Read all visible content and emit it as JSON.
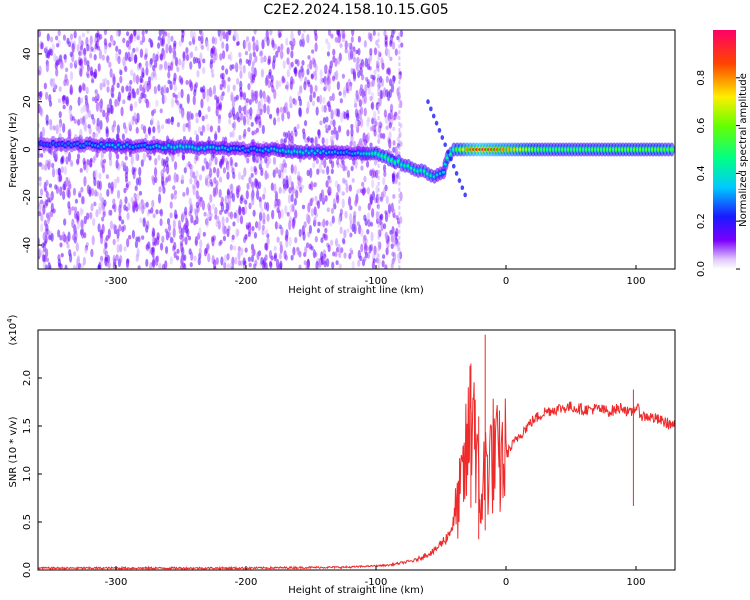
{
  "title": "C2E2.2024.158.10.15.G05",
  "colors": {
    "spectrum_low": "#7a00ff",
    "spectrum_mid": "#00ff66",
    "spectrum_high": "#ff0040",
    "snr_line": "#ee2a2a",
    "axis": "#000000"
  },
  "colorbar": {
    "label": "Normalized spectral amplitude",
    "ticks": [
      "0.0",
      "0.2",
      "0.4",
      "0.6",
      "0.8"
    ],
    "tick_values": [
      0.0,
      0.2,
      0.4,
      0.6,
      0.8
    ],
    "range": [
      0,
      1
    ]
  },
  "chart_data": [
    {
      "type": "heatmap",
      "title": "C2E2.2024.158.10.15.G05",
      "xlabel": "Height of straight line (km)",
      "ylabel": "Frequency (Hz)",
      "xlim": [
        -360,
        130
      ],
      "ylim": [
        -50,
        50
      ],
      "xticks": [
        -300,
        -200,
        -100,
        0,
        100
      ],
      "xtick_labels": [
        "-300",
        "-200",
        "-100",
        "0",
        "100"
      ],
      "yticks": [
        -40,
        -20,
        0,
        20,
        40
      ],
      "ytick_labels": [
        "-40",
        "-20",
        "0",
        "20",
        "40"
      ],
      "ridge": [
        {
          "x": -360,
          "y": 2.5,
          "amp": 0.25
        },
        {
          "x": -320,
          "y": 2,
          "amp": 0.3
        },
        {
          "x": -300,
          "y": 1.5,
          "amp": 0.35
        },
        {
          "x": -280,
          "y": 1.5,
          "amp": 0.3
        },
        {
          "x": -250,
          "y": 1,
          "amp": 0.4
        },
        {
          "x": -220,
          "y": 0.5,
          "amp": 0.35
        },
        {
          "x": -200,
          "y": 0,
          "amp": 0.3
        },
        {
          "x": -180,
          "y": 0,
          "amp": 0.35
        },
        {
          "x": -160,
          "y": -1,
          "amp": 0.4
        },
        {
          "x": -140,
          "y": -1,
          "amp": 0.35
        },
        {
          "x": -120,
          "y": -1.5,
          "amp": 0.3
        },
        {
          "x": -100,
          "y": -2,
          "amp": 0.45
        },
        {
          "x": -90,
          "y": -4,
          "amp": 0.5
        },
        {
          "x": -80,
          "y": -6,
          "amp": 0.45
        },
        {
          "x": -70,
          "y": -8,
          "amp": 0.45
        },
        {
          "x": -60,
          "y": -10,
          "amp": 0.45
        },
        {
          "x": -55,
          "y": -11,
          "amp": 0.4
        },
        {
          "x": -48,
          "y": -9,
          "amp": 0.35
        },
        {
          "x": -45,
          "y": -4,
          "amp": 0.45
        },
        {
          "x": -40,
          "y": 0,
          "amp": 0.5
        },
        {
          "x": -30,
          "y": 0,
          "amp": 0.8
        },
        {
          "x": -20,
          "y": 0,
          "amp": 0.95
        },
        {
          "x": 0,
          "y": 0,
          "amp": 0.8
        },
        {
          "x": 30,
          "y": 0,
          "amp": 0.55
        },
        {
          "x": 60,
          "y": 0,
          "amp": 0.55
        },
        {
          "x": 90,
          "y": 0,
          "amp": 0.6
        },
        {
          "x": 120,
          "y": 0,
          "amp": 0.6
        },
        {
          "x": 130,
          "y": 0,
          "amp": 0.55
        }
      ]
    },
    {
      "type": "line",
      "xlabel": "Height of straight line (km)",
      "ylabel": "SNR (10 * v/v)",
      "y_multiplier_label": "(x10",
      "y_multiplier_exp": "4",
      "y_multiplier_close": ")",
      "xlim": [
        -360,
        130
      ],
      "ylim": [
        0,
        2.5
      ],
      "xticks": [
        -300,
        -200,
        -100,
        0,
        100
      ],
      "xtick_labels": [
        "-300",
        "-200",
        "-100",
        "0",
        "100"
      ],
      "yticks": [
        0.0,
        0.5,
        1.0,
        1.5,
        2.0
      ],
      "ytick_labels": [
        "0.0",
        "0.5",
        "1.0",
        "1.5",
        "2.0"
      ],
      "series": [
        {
          "x": [
            -360,
            -300,
            -200,
            -120,
            -90,
            -70,
            -55,
            -45,
            -40,
            -35,
            -30,
            -25,
            -22,
            -20,
            -18,
            -15,
            -10,
            -5,
            0,
            5,
            10,
            20,
            30,
            40,
            50,
            60,
            70,
            80,
            90,
            95,
            100,
            105,
            110,
            120,
            130
          ],
          "y": [
            0.02,
            0.02,
            0.02,
            0.03,
            0.05,
            0.1,
            0.2,
            0.35,
            0.5,
            0.8,
            1.2,
            1.9,
            1.0,
            0.6,
            0.9,
            1.1,
            1.2,
            1.1,
            1.2,
            1.3,
            1.4,
            1.55,
            1.65,
            1.68,
            1.7,
            1.67,
            1.68,
            1.65,
            1.7,
            1.62,
            1.7,
            1.6,
            1.6,
            1.55,
            1.5
          ]
        }
      ],
      "spikes": [
        {
          "x": -27,
          "y": 2.15
        },
        {
          "x": -21,
          "y": 1.6
        },
        {
          "x": -16,
          "y": 2.45
        },
        {
          "x": 98,
          "y": 1.88
        }
      ]
    }
  ]
}
